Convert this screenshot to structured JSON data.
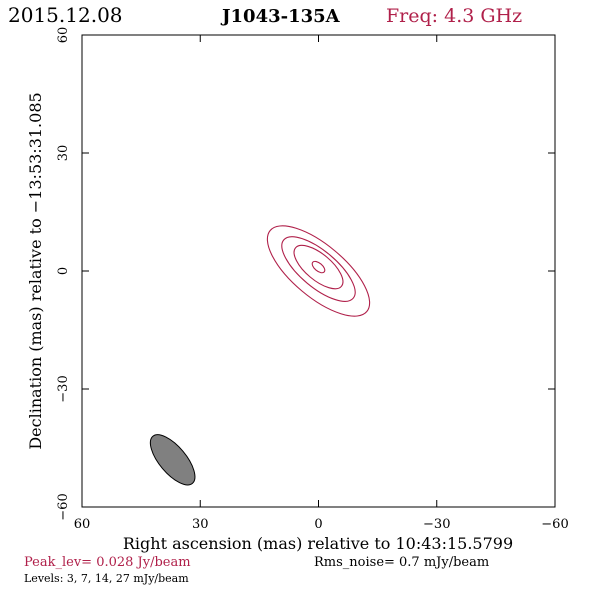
{
  "header": {
    "date": "2015.12.08",
    "source": "J1043-135A",
    "freq": "Freq: 4.3 GHz"
  },
  "colors": {
    "contour": "#b0204a",
    "peak_text": "#b0204a",
    "freq_text": "#b0204a",
    "beam_fill": "#808080"
  },
  "chart_data": {
    "type": "contour",
    "xlabel": "Right ascension (mas) relative to 10:43:15.5799",
    "ylabel": "Declination (mas) relative to −13:53:31.085",
    "xlim": [
      60,
      -60
    ],
    "ylim": [
      -60,
      60
    ],
    "xticks": [
      60,
      30,
      0,
      -30,
      -60
    ],
    "yticks": [
      -60,
      -30,
      0,
      30,
      60
    ],
    "xtick_labels": [
      "60",
      "30",
      "0",
      "−30",
      "−60"
    ],
    "ytick_labels": [
      "−60",
      "−30",
      "0",
      "30",
      "60"
    ],
    "contour_levels_mJy": [
      3,
      7,
      14,
      27
    ],
    "contours": [
      {
        "level": 3,
        "cx": 0,
        "cy": 0,
        "a": 16.0,
        "b": 6.6,
        "pa": 50
      },
      {
        "level": 7,
        "cx": 0,
        "cy": 0.5,
        "a": 11.5,
        "b": 4.6,
        "pa": 50
      },
      {
        "level": 14,
        "cx": 0,
        "cy": 1,
        "a": 7.6,
        "b": 3.3,
        "pa": 50
      },
      {
        "level": 27,
        "cx": 0,
        "cy": 1,
        "a": 1.9,
        "b": 1.0,
        "pa": 50
      }
    ],
    "beam": {
      "cx": 37,
      "cy": -48,
      "a": 7.8,
      "b": 3.4,
      "pa": 40
    },
    "peak": "Peak_lev=  0.028 Jy/beam",
    "rms": "Rms_noise=  0.7 mJy/beam",
    "levels": "Levels:  3,  7,  14,  27 mJy/beam"
  }
}
